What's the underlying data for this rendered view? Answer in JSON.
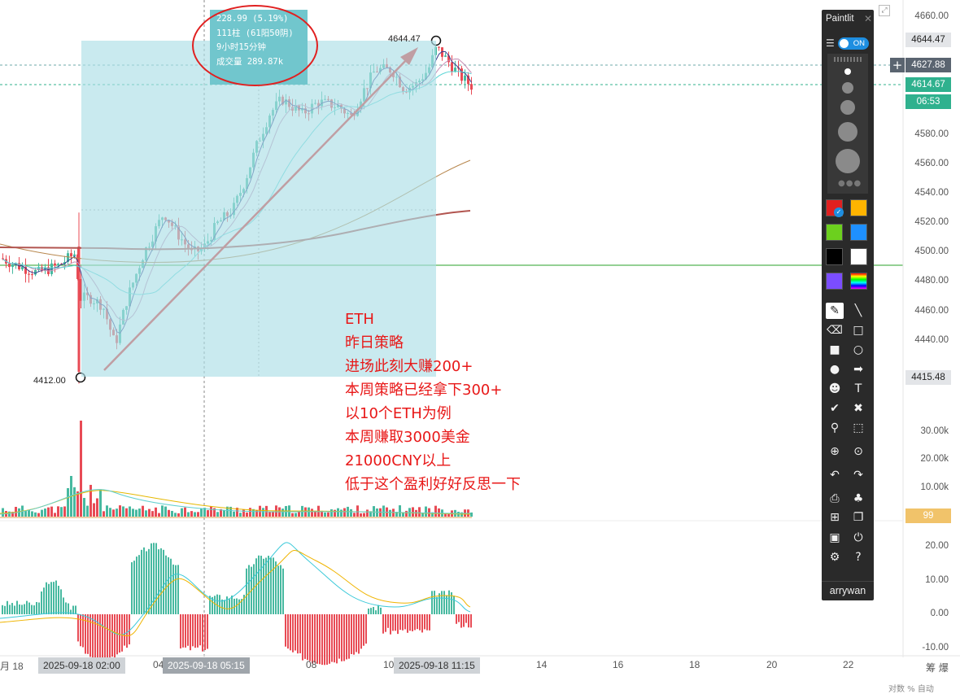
{
  "colors": {
    "up": "#47b9a0",
    "down": "#e84b55",
    "annotation_red": "#e81818",
    "ma_dark": "#3a3f8f",
    "ma_pink": "#c58fb5",
    "ma_cyan": "#5ed6d6",
    "ma_brown": "#b7864c",
    "ma_long": "#b25550",
    "green_line": "#2aa02a",
    "macd_dif": "#3bc9d9",
    "macd_dea": "#f0b400",
    "vol_ma_yellow": "#e5b800",
    "vol_ma_cyan": "#5fcfcf",
    "current_badge": "#2fb18e",
    "level_badge": "#e6a23c"
  },
  "info_box": {
    "change": "228.99 (5.19%)",
    "bars": "111柱 (61阳50阴)",
    "duration": "9小时15分钟",
    "volume": "成交量 289.87k"
  },
  "price_marks": {
    "high": "4644.47",
    "low": "4412.00"
  },
  "annotation": [
    "ETH",
    "昨日策略",
    "进场此刻大赚200+",
    "本周策略已经拿下300+",
    "以10个ETH为例",
    "本周赚取3000美金",
    "21000CNY以上",
    "低于这个盈利好好反思一下"
  ],
  "price_axis": {
    "labels": [
      "4660.00",
      "4580.00",
      "4560.00",
      "4540.00",
      "4520.00",
      "4500.00",
      "4480.00",
      "4460.00",
      "4440.00"
    ],
    "badges": {
      "high": "4644.47",
      "cursor": "4627.88",
      "current": "4614.67",
      "countdown": "06:53",
      "low": "4415.48"
    }
  },
  "volume_axis": {
    "labels": [
      "30.00k",
      "20.00k",
      "10.00k"
    ],
    "level_badge": "99"
  },
  "macd_axis": {
    "labels": [
      "20.00",
      "10.00",
      "0.00",
      "-10.00"
    ]
  },
  "time_axis": {
    "labels": [
      "月 18",
      "04",
      "08",
      "10",
      "14",
      "16",
      "18",
      "20",
      "22"
    ],
    "badge_start": "2025-09-18 02:00",
    "badge_cursor": "2025-09-18 05:15",
    "badge_end": "2025-09-18 11:15"
  },
  "corner": {
    "right_label": "筹 爆",
    "bottom_small": "对数  %  自动"
  },
  "paintlit": {
    "title": "Paintlit",
    "toggle": "ON",
    "footer": "arrywan",
    "swatches": [
      "#e02020",
      "#ffb400",
      "#6cd01e",
      "#1e90ff",
      "#000000",
      "#ffffff",
      "#7b4dff",
      "rainbow"
    ],
    "tools": [
      [
        "pencil-icon",
        "✎"
      ],
      [
        "line-icon",
        "╲"
      ],
      [
        "eraser-icon",
        "⌫"
      ],
      [
        "rectangle-icon",
        "□"
      ],
      [
        "filled-rect-icon",
        "■"
      ],
      [
        "ellipse-icon",
        "○"
      ],
      [
        "filled-ellipse-icon",
        "●"
      ],
      [
        "arrow-icon",
        "➡"
      ],
      [
        "person-icon",
        "☻"
      ],
      [
        "text-icon",
        "T"
      ],
      [
        "check-icon",
        "✔"
      ],
      [
        "cross-icon",
        "✖"
      ],
      [
        "eyedropper-icon",
        "⚲"
      ],
      [
        "select-icon",
        "⬚"
      ],
      [
        "zoom-in-icon",
        "⊕"
      ],
      [
        "zoom-icon",
        "⊙"
      ],
      [
        "undo-icon",
        "↶"
      ],
      [
        "redo-icon",
        "↷"
      ],
      [
        "print-icon",
        "⎙"
      ],
      [
        "clear-icon",
        "♣"
      ],
      [
        "new-icon",
        "⊞"
      ],
      [
        "copy-icon",
        "❐"
      ],
      [
        "save-icon",
        "▣"
      ],
      [
        "power-icon",
        "⏻"
      ],
      [
        "settings-icon",
        "⚙"
      ],
      [
        "help-icon",
        "?"
      ]
    ]
  }
}
